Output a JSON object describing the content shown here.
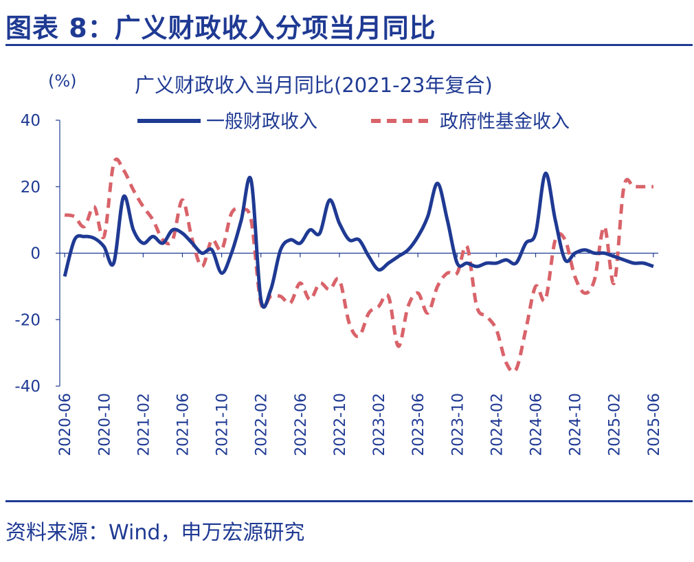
{
  "figure": {
    "title": "图表 8：广义财政收入分项当月同比",
    "source": "资料来源：Wind，申万宏源研究"
  },
  "chart_data": {
    "type": "line",
    "title": "广义财政收入当月同比(2021-23年复合)",
    "ylabel": "(%)",
    "ylim": [
      -40,
      40
    ],
    "yticks": [
      40,
      20,
      0,
      -20,
      -40
    ],
    "grid": false,
    "legend_position": "top",
    "x_ticks": [
      "2020-06",
      "2020-10",
      "2021-02",
      "2021-06",
      "2021-10",
      "2022-02",
      "2022-06",
      "2022-10",
      "2023-02",
      "2023-06",
      "2023-10",
      "2024-02",
      "2024-06",
      "2024-10",
      "2025-02",
      "2025-06"
    ],
    "x": [
      "2020-06",
      "2020-07",
      "2020-08",
      "2020-09",
      "2020-10",
      "2020-11",
      "2020-12",
      "2021-01",
      "2021-02",
      "2021-03",
      "2021-04",
      "2021-05",
      "2021-06",
      "2021-07",
      "2021-08",
      "2021-09",
      "2021-10",
      "2021-11",
      "2021-12",
      "2022-01",
      "2022-02",
      "2022-03",
      "2022-04",
      "2022-05",
      "2022-06",
      "2022-07",
      "2022-08",
      "2022-09",
      "2022-10",
      "2022-11",
      "2022-12",
      "2023-01",
      "2023-02",
      "2023-03",
      "2023-04",
      "2023-05",
      "2023-06",
      "2023-07",
      "2023-08",
      "2023-09",
      "2023-10",
      "2023-11",
      "2023-12",
      "2024-01",
      "2024-02",
      "2024-03",
      "2024-04",
      "2024-05",
      "2024-06",
      "2024-07",
      "2024-08",
      "2024-09",
      "2024-10",
      "2024-11",
      "2024-12",
      "2025-01",
      "2025-02",
      "2025-03",
      "2025-04",
      "2025-05",
      "2025-06"
    ],
    "series": [
      {
        "name": "一般财政收入",
        "color": "#1f3a93",
        "style": "solid",
        "values": [
          -7,
          4,
          5,
          4.5,
          2,
          -3,
          17,
          7,
          3,
          5,
          3,
          7,
          6,
          3,
          0,
          1,
          -6,
          0,
          10,
          22,
          -14,
          -11,
          1,
          4,
          3,
          7,
          6,
          16,
          9,
          4,
          4,
          -1,
          -5,
          -3,
          -1,
          1,
          5,
          11,
          21,
          10,
          -3,
          -3,
          -4,
          -3,
          -3,
          -2,
          -3,
          3,
          6,
          24,
          10,
          -2,
          0,
          1,
          0,
          0,
          -1,
          -2,
          -3,
          -3,
          -4
        ]
      },
      {
        "name": "政府性基金收入",
        "color": "#d9636a",
        "style": "dashed",
        "values": [
          11.5,
          11,
          8,
          14,
          5,
          27,
          25,
          19,
          14,
          10,
          4,
          4,
          16,
          4,
          -4,
          4,
          1,
          12,
          13,
          10,
          -15,
          -13,
          -13,
          -15,
          -9,
          -14,
          -9,
          -11,
          -8,
          -21,
          -25,
          -18,
          -16,
          -13,
          -28,
          -16,
          -12,
          -18,
          -10,
          -6,
          -6,
          2,
          -16,
          -19,
          -23,
          -33,
          -35,
          -23,
          -10,
          -14,
          4,
          4,
          -7,
          -12,
          -8,
          8,
          -9,
          20,
          20,
          20,
          20
        ]
      }
    ]
  }
}
